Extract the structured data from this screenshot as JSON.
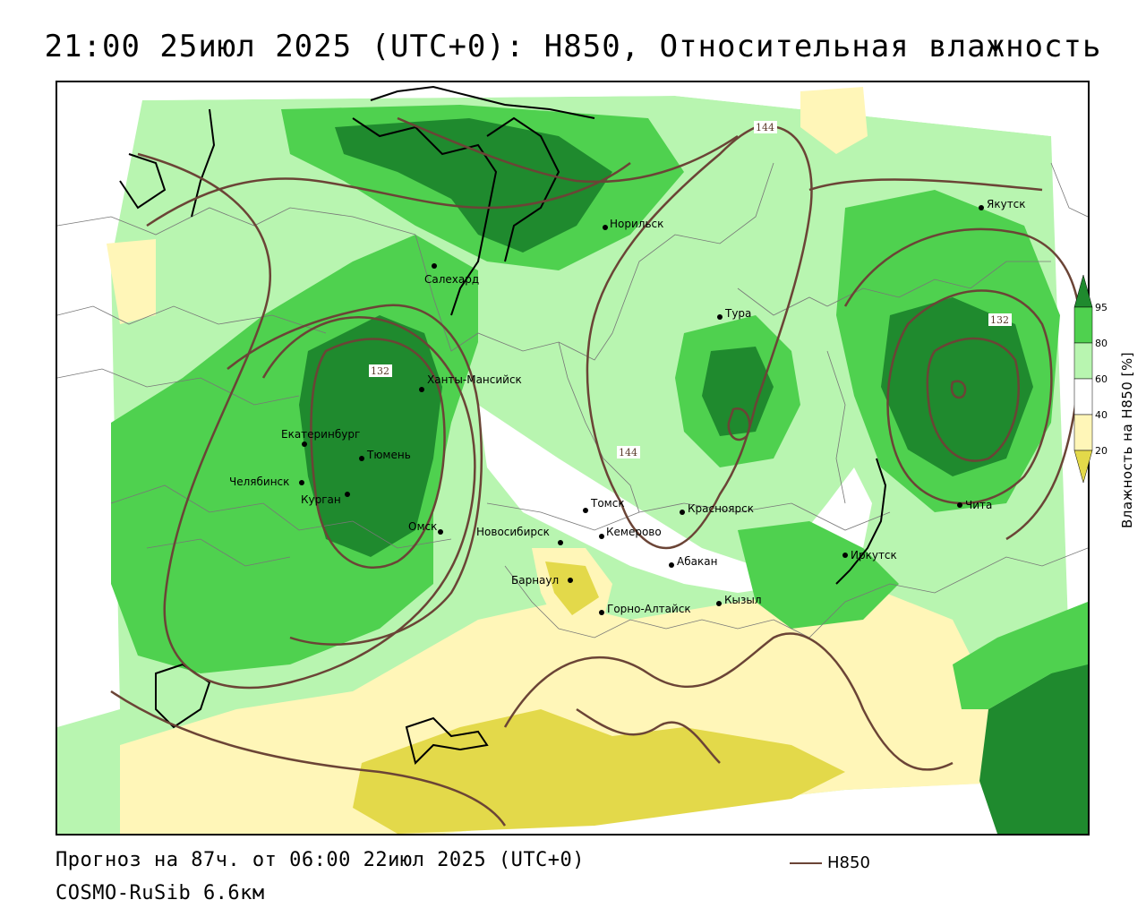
{
  "title": "21:00 25июл 2025 (UTC+0): H850, Относительная влажность",
  "forecast_text": "Прогноз на 87ч. от 06:00 22июл 2025 (UTC+0)",
  "model_text": "COSMO-RuSib 6.6км",
  "contour_legend_label": "H850",
  "colorbar": {
    "title": "Влажность на H850 [%]",
    "ticks": [
      "95",
      "80",
      "60",
      "40",
      "20"
    ],
    "colors": {
      "c95": "#1f8a2e",
      "c80": "#4fd14f",
      "c60": "#b8f5b0",
      "c50": "#ffffff",
      "c40": "#fff6b8",
      "c20": "#e3d94a"
    }
  },
  "contour_labels": [
    "144",
    "132",
    "144",
    "132"
  ],
  "cities": [
    {
      "name": "Салехард"
    },
    {
      "name": "Норильск"
    },
    {
      "name": "Якутск"
    },
    {
      "name": "Тура"
    },
    {
      "name": "Ханты-Мансийск"
    },
    {
      "name": "Екатеринбург"
    },
    {
      "name": "Тюмень"
    },
    {
      "name": "Челябинск"
    },
    {
      "name": "Курган"
    },
    {
      "name": "Омск"
    },
    {
      "name": "Новосибирск"
    },
    {
      "name": "Томск"
    },
    {
      "name": "Кемерово"
    },
    {
      "name": "Красноярск"
    },
    {
      "name": "Барнаул"
    },
    {
      "name": "Абакан"
    },
    {
      "name": "Горно-Алтайск"
    },
    {
      "name": "Кызыл"
    },
    {
      "name": "Иркутск"
    },
    {
      "name": "Чита"
    }
  ],
  "colors": {
    "contour": "#6b4436",
    "coast": "#000000",
    "border": "#777777"
  }
}
